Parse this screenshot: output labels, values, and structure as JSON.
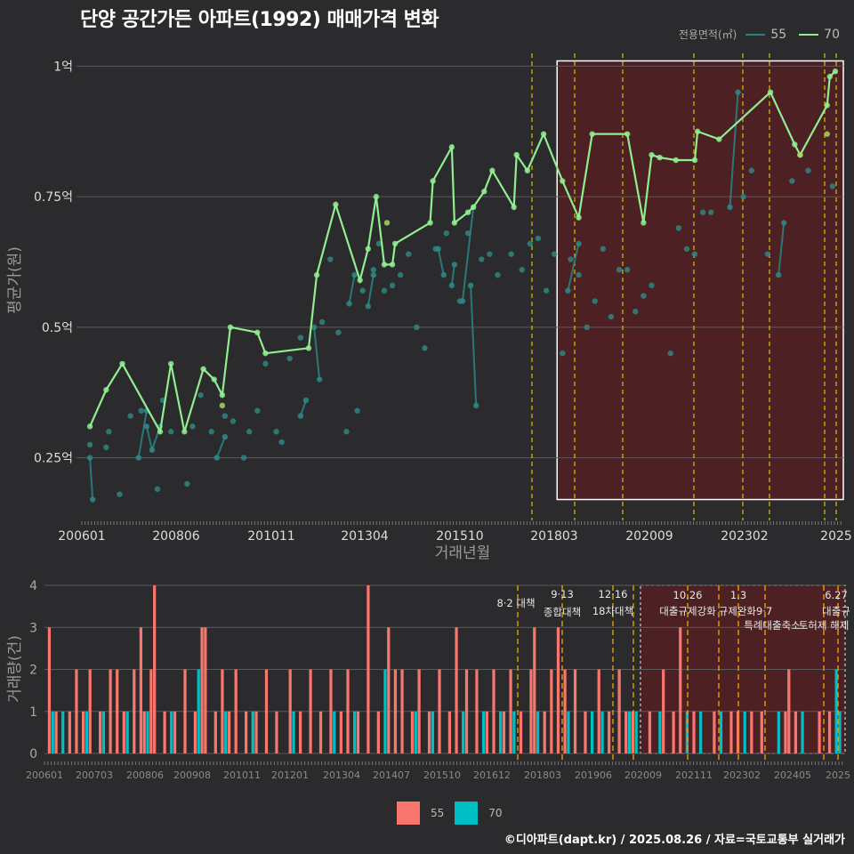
{
  "title": "단양 공간가든 아파트(1992) 매매가격 변화",
  "credit": "©디아파트(dapt.kr) / 2025.08.26 / 자료=국토교통부 실거래가",
  "colors": {
    "s55_line": "#2a7f7f",
    "s55_point": "#2e8b87",
    "s70": "#90ee90",
    "bar55": "#f8766d",
    "bar70": "#00bfc4",
    "vline": "#d9c400",
    "vline_bottom": "#e0a000",
    "highlight_fill": "#5a1e20",
    "highlight_border": "#ffffff"
  },
  "legend_top": {
    "title": "전용면적(㎡)",
    "items": [
      "55",
      "70"
    ]
  },
  "legend_bottom": {
    "items": [
      "55",
      "70"
    ]
  },
  "chart_data": [
    {
      "type": "line",
      "xlabel": "거래년월",
      "ylabel": "평균가(원)",
      "ylim": [
        0.13,
        1.05
      ],
      "y_unit": "억",
      "yticks": [
        {
          "value": 0.25,
          "label": "0.25억"
        },
        {
          "value": 0.5,
          "label": "0.5억"
        },
        {
          "value": 0.75,
          "label": "0.75억"
        },
        {
          "value": 1.0,
          "label": "1억"
        }
      ],
      "x_start": "2006-01",
      "x_end": "2025-08",
      "xtick_labels": [
        "200601",
        "200806",
        "201011",
        "201304",
        "201510",
        "201803",
        "202009",
        "202302",
        "2025"
      ],
      "policy_dates": [
        "2017-08",
        "2018-09",
        "2019-12",
        "2020-06",
        "2021-10",
        "2023-01",
        "2023-09",
        "2025-06",
        "2025-07"
      ],
      "highlight": {
        "x_from": "2020-09",
        "x_to": "2025-08",
        "y_from": 0.17,
        "y_to": 1.01
      },
      "series": [
        {
          "name": "70",
          "line": [
            [
              "2006-04",
              0.31
            ],
            [
              "2006-10",
              0.38
            ],
            [
              "2007-04",
              0.43
            ],
            [
              "2008-06",
              0.3
            ],
            [
              "2008-10",
              0.43
            ],
            [
              "2009-03",
              0.3
            ],
            [
              "2009-10",
              0.42
            ],
            [
              "2010-02",
              0.4
            ],
            [
              "2010-05",
              0.37
            ],
            [
              "2010-08",
              0.5
            ],
            [
              "2011-06",
              0.49
            ],
            [
              "2011-09",
              0.45
            ],
            [
              "2013-01",
              0.46
            ],
            [
              "2013-04",
              0.6
            ],
            [
              "2013-11",
              0.735
            ],
            [
              "2014-08",
              0.59
            ],
            [
              "2014-11",
              0.65
            ],
            [
              "2015-02",
              0.75
            ],
            [
              "2015-05",
              0.62
            ],
            [
              "2015-08",
              0.62
            ],
            [
              "2015-09",
              0.66
            ],
            [
              "2016-10",
              0.7
            ],
            [
              "2016-11",
              0.78
            ],
            [
              "2017-06",
              0.845
            ],
            [
              "2017-07",
              0.7
            ],
            [
              "2017-12",
              0.72
            ],
            [
              "2018-02",
              0.73
            ],
            [
              "2018-06",
              0.76
            ],
            [
              "2018-09",
              0.8
            ],
            [
              "2019-05",
              0.73
            ],
            [
              "2019-06",
              0.83
            ],
            [
              "2019-10",
              0.8
            ],
            [
              "2020-04",
              0.87
            ],
            [
              "2020-11",
              0.78
            ],
            [
              "2021-05",
              0.71
            ],
            [
              "2021-10",
              0.87
            ],
            [
              "2022-11",
              0.87
            ],
            [
              "2023-05",
              0.7
            ],
            [
              "2023-08",
              0.83
            ],
            [
              "2023-11",
              0.825
            ],
            [
              "2024-05",
              0.82
            ],
            [
              "2024-12",
              0.82
            ],
            [
              "2025-01",
              0.875
            ],
            [
              "2025-09",
              0.86
            ],
            [
              "2027-04",
              0.95
            ],
            [
              "2028-01",
              0.85
            ],
            [
              "2028-03",
              0.83
            ],
            [
              "2029-01",
              0.925
            ],
            [
              "2029-02",
              0.98
            ],
            [
              "2029-04",
              0.99
            ]
          ],
          "points": [
            [
              "2010-05",
              0.35
            ],
            [
              "2015-06",
              0.7
            ],
            [
              "2029-01",
              0.87
            ],
            [
              "2028-03",
              0.83
            ]
          ]
        },
        {
          "name": "55",
          "segments": [
            [
              [
                "2006-04",
                0.25
              ],
              [
                "2006-05",
                0.17
              ]
            ],
            [
              [
                "2007-10",
                0.25
              ],
              [
                "2008-01",
                0.34
              ]
            ],
            [
              [
                "2008-01",
                0.31
              ],
              [
                "2008-03",
                0.265
              ],
              [
                "2008-06",
                0.31
              ]
            ],
            [
              [
                "2010-03",
                0.25
              ],
              [
                "2010-06",
                0.29
              ]
            ],
            [
              [
                "2012-10",
                0.33
              ],
              [
                "2012-12",
                0.36
              ]
            ],
            [
              [
                "2013-03",
                0.5
              ],
              [
                "2013-05",
                0.4
              ]
            ],
            [
              [
                "2014-04",
                0.545
              ],
              [
                "2014-06",
                0.6
              ]
            ],
            [
              [
                "2014-11",
                0.54
              ],
              [
                "2015-01",
                0.6
              ]
            ],
            [
              [
                "2017-01",
                0.65
              ],
              [
                "2017-03",
                0.6
              ]
            ],
            [
              [
                "2017-06",
                0.58
              ],
              [
                "2017-07",
                0.62
              ]
            ],
            [
              [
                "2017-10",
                0.55
              ],
              [
                "2018-02",
                0.73
              ]
            ],
            [
              [
                "2018-01",
                0.58
              ],
              [
                "2018-03",
                0.35
              ]
            ],
            [
              [
                "2021-01",
                0.57
              ],
              [
                "2021-05",
                0.66
              ]
            ],
            [
              [
                "2026-01",
                0.73
              ],
              [
                "2026-04",
                0.95
              ]
            ],
            [
              [
                "2027-07",
                0.6
              ],
              [
                "2027-09",
                0.7
              ]
            ]
          ],
          "points": [
            [
              "2006-04",
              0.275
            ],
            [
              "2006-10",
              0.27
            ],
            [
              "2006-11",
              0.3
            ],
            [
              "2007-03",
              0.18
            ],
            [
              "2007-07",
              0.33
            ],
            [
              "2007-11",
              0.34
            ],
            [
              "2008-05",
              0.19
            ],
            [
              "2008-07",
              0.36
            ],
            [
              "2008-10",
              0.3
            ],
            [
              "2009-04",
              0.2
            ],
            [
              "2009-06",
              0.31
            ],
            [
              "2009-09",
              0.37
            ],
            [
              "2010-01",
              0.3
            ],
            [
              "2010-06",
              0.33
            ],
            [
              "2010-09",
              0.32
            ],
            [
              "2011-01",
              0.25
            ],
            [
              "2011-03",
              0.3
            ],
            [
              "2011-06",
              0.34
            ],
            [
              "2011-09",
              0.43
            ],
            [
              "2012-01",
              0.3
            ],
            [
              "2012-03",
              0.28
            ],
            [
              "2012-06",
              0.44
            ],
            [
              "2012-10",
              0.48
            ],
            [
              "2013-06",
              0.51
            ],
            [
              "2013-09",
              0.63
            ],
            [
              "2013-12",
              0.49
            ],
            [
              "2014-03",
              0.3
            ],
            [
              "2014-07",
              0.34
            ],
            [
              "2014-09",
              0.57
            ],
            [
              "2015-01",
              0.61
            ],
            [
              "2015-03",
              0.66
            ],
            [
              "2015-05",
              0.57
            ],
            [
              "2015-08",
              0.58
            ],
            [
              "2015-11",
              0.6
            ],
            [
              "2016-02",
              0.64
            ],
            [
              "2016-05",
              0.5
            ],
            [
              "2016-08",
              0.46
            ],
            [
              "2016-12",
              0.65
            ],
            [
              "2017-04",
              0.68
            ],
            [
              "2017-09",
              0.55
            ],
            [
              "2017-12",
              0.68
            ],
            [
              "2018-05",
              0.63
            ],
            [
              "2018-08",
              0.64
            ],
            [
              "2018-11",
              0.6
            ],
            [
              "2019-04",
              0.64
            ],
            [
              "2019-08",
              0.61
            ],
            [
              "2019-11",
              0.66
            ],
            [
              "2020-02",
              0.67
            ],
            [
              "2020-05",
              0.57
            ],
            [
              "2020-08",
              0.64
            ],
            [
              "2020-11",
              0.45
            ],
            [
              "2021-02",
              0.63
            ],
            [
              "2021-05",
              0.6
            ],
            [
              "2021-08",
              0.5
            ],
            [
              "2021-11",
              0.55
            ],
            [
              "2022-02",
              0.65
            ],
            [
              "2022-05",
              0.52
            ],
            [
              "2022-08",
              0.61
            ],
            [
              "2022-11",
              0.61
            ],
            [
              "2023-02",
              0.53
            ],
            [
              "2023-05",
              0.56
            ],
            [
              "2023-08",
              0.58
            ],
            [
              "2024-03",
              0.45
            ],
            [
              "2024-06",
              0.69
            ],
            [
              "2024-09",
              0.65
            ],
            [
              "2024-12",
              0.64
            ],
            [
              "2025-03",
              0.72
            ],
            [
              "2025-06",
              0.72
            ],
            [
              "2026-06",
              0.75
            ],
            [
              "2026-09",
              0.8
            ],
            [
              "2027-03",
              0.64
            ],
            [
              "2027-12",
              0.78
            ],
            [
              "2028-06",
              0.8
            ],
            [
              "2029-03",
              0.77
            ]
          ]
        }
      ]
    },
    {
      "type": "bar",
      "ylabel": "거래량(건)",
      "ylim": [
        0,
        4
      ],
      "yticks": [
        0,
        1,
        2,
        3,
        4
      ],
      "x_start": "2006-01",
      "x_end": "2025-08",
      "xtick_labels": [
        "200601",
        "200703",
        "200806",
        "200908",
        "201011",
        "201201",
        "201304",
        "201407",
        "201510",
        "201612",
        "201803",
        "201906",
        "202009",
        "202111",
        "202302",
        "202405",
        "2025"
      ],
      "annotations": [
        {
          "date": "2017-08",
          "row1": "",
          "row2": "8·2 대책"
        },
        {
          "date": "2018-09",
          "row1": "9·13",
          "row2": "종합대책"
        },
        {
          "date": "2019-12",
          "row1": "12·16",
          "row2": "18차대책"
        },
        {
          "date": "2021-10",
          "row1": "10.26",
          "row2": "대출규제강화"
        },
        {
          "date": "2023-01",
          "row1": "1.3",
          "row2": "규제완화"
        },
        {
          "date": "2023-09",
          "row1": "",
          "row2": "9.7"
        },
        {
          "date": "2023-09",
          "row1": "",
          "row3": "특례대출축소"
        },
        {
          "date": "2025-06",
          "row1": "",
          "row3": "토허제 해제"
        },
        {
          "date": "2025-07",
          "row1": "6.27",
          "row2": "대출규"
        }
      ],
      "highlight": {
        "x_from": "2020-09",
        "x_to": "2025-08",
        "y_from": 0,
        "y_to": 4
      },
      "series": [
        {
          "name": "55",
          "values": {
            "2006-02": 3,
            "2006-04": 1,
            "2006-08": 1,
            "2006-10": 2,
            "2006-12": 1,
            "2007-02": 2,
            "2007-05": 1,
            "2007-08": 2,
            "2007-10": 2,
            "2007-12": 1,
            "2008-03": 2,
            "2008-05": 3,
            "2008-06": 1,
            "2008-08": 2,
            "2008-09": 4,
            "2008-12": 1,
            "2009-03": 1,
            "2009-06": 2,
            "2009-09": 1,
            "2009-11": 3,
            "2009-12": 3,
            "2010-03": 1,
            "2010-05": 2,
            "2010-07": 1,
            "2010-09": 2,
            "2010-12": 1,
            "2011-03": 1,
            "2011-06": 2,
            "2011-09": 1,
            "2012-01": 2,
            "2012-04": 1,
            "2012-07": 2,
            "2012-10": 1,
            "2013-01": 2,
            "2013-04": 1,
            "2013-06": 2,
            "2013-09": 1,
            "2013-12": 4,
            "2014-03": 1,
            "2014-06": 3,
            "2014-08": 2,
            "2014-10": 2,
            "2015-01": 1,
            "2015-03": 2,
            "2015-06": 1,
            "2015-09": 2,
            "2015-12": 1,
            "2016-02": 3,
            "2016-05": 2,
            "2016-08": 2,
            "2016-11": 1,
            "2017-01": 2,
            "2017-04": 1,
            "2017-06": 2,
            "2017-09": 1,
            "2017-12": 2,
            "2018-01": 3,
            "2018-04": 1,
            "2018-06": 2,
            "2018-08": 3,
            "2018-10": 2,
            "2019-01": 2,
            "2019-04": 1,
            "2019-08": 2,
            "2019-11": 1,
            "2020-02": 2,
            "2020-04": 1,
            "2020-06": 1,
            "2020-11": 1,
            "2021-03": 2,
            "2021-06": 1,
            "2021-08": 3,
            "2021-12": 1,
            "2022-06": 1,
            "2022-11": 1,
            "2023-01": 1,
            "2023-05": 1,
            "2023-08": 1,
            "2024-03": 1,
            "2024-04": 2,
            "2024-06": 1,
            "2025-01": 1,
            "2025-04": 1
          }
        },
        {
          "name": "70",
          "values": {
            "2006-03": 1,
            "2006-06": 1,
            "2007-01": 1,
            "2007-06": 1,
            "2008-01": 1,
            "2008-07": 1,
            "2009-02": 1,
            "2009-10": 2,
            "2010-06": 1,
            "2011-02": 1,
            "2012-02": 1,
            "2013-02": 1,
            "2013-08": 1,
            "2014-05": 2,
            "2015-02": 1,
            "2015-07": 1,
            "2016-04": 1,
            "2016-10": 1,
            "2017-03": 1,
            "2017-07": 1,
            "2018-02": 1,
            "2018-11": 1,
            "2019-06": 1,
            "2019-09": 1,
            "2020-05": 1,
            "2020-07": 1,
            "2021-02": 1,
            "2021-10": 1,
            "2022-02": 1,
            "2022-08": 1,
            "2023-03": 1,
            "2024-01": 1,
            "2024-08": 1,
            "2025-06": 2,
            "2025-07": 1
          }
        }
      ]
    }
  ]
}
